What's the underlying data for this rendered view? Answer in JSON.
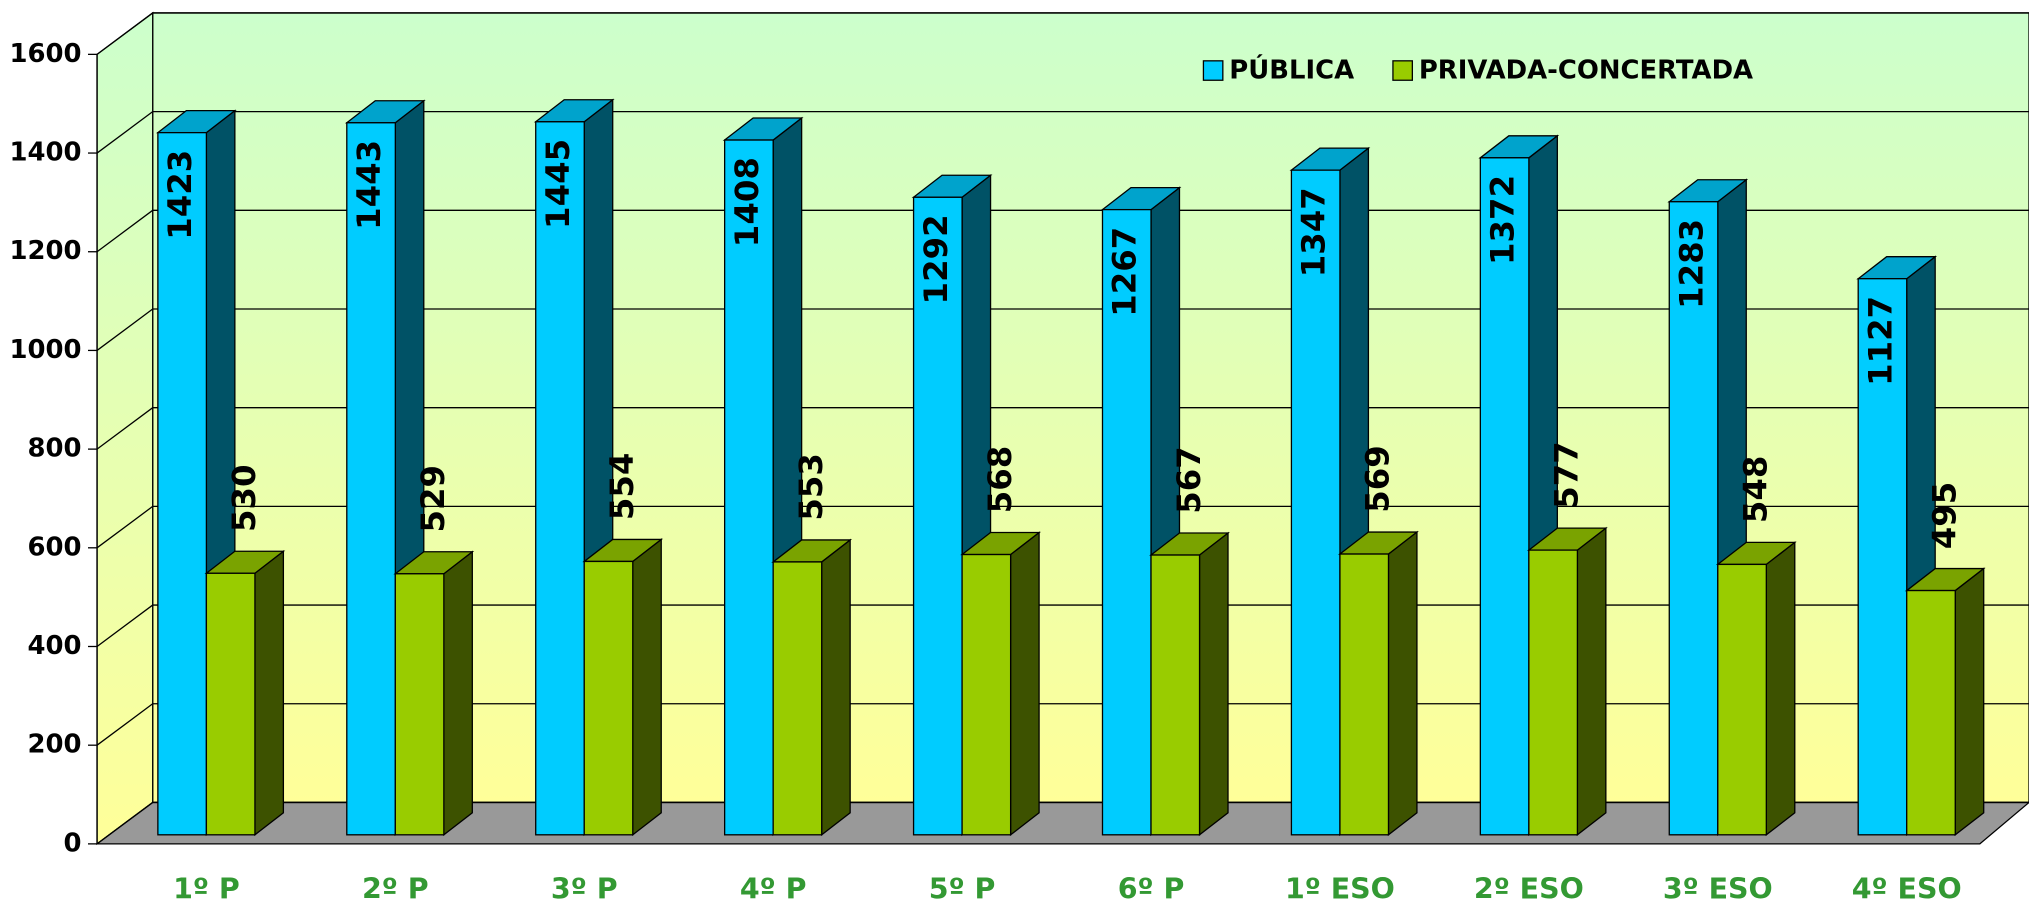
{
  "chart_data": {
    "type": "bar3d",
    "categories": [
      "1º P",
      "2º P",
      "3º P",
      "4º P",
      "5º P",
      "6º P",
      "1º ESO",
      "2º ESO",
      "3º ESO",
      "4º ESO"
    ],
    "series": [
      {
        "name": "PÚBLICA",
        "color": "#00ccff",
        "values": [
          1423,
          1443,
          1445,
          1408,
          1292,
          1267,
          1347,
          1372,
          1283,
          1127
        ]
      },
      {
        "name": "PRIVADA-CONCERTADA",
        "color": "#99cc00",
        "values": [
          530,
          529,
          554,
          553,
          568,
          567,
          569,
          577,
          548,
          495
        ]
      }
    ],
    "ylim": [
      0,
      1600
    ],
    "yticks": [
      0,
      200,
      400,
      600,
      800,
      1000,
      1200,
      1400,
      1600
    ],
    "grid": true,
    "legend": "top-right"
  }
}
